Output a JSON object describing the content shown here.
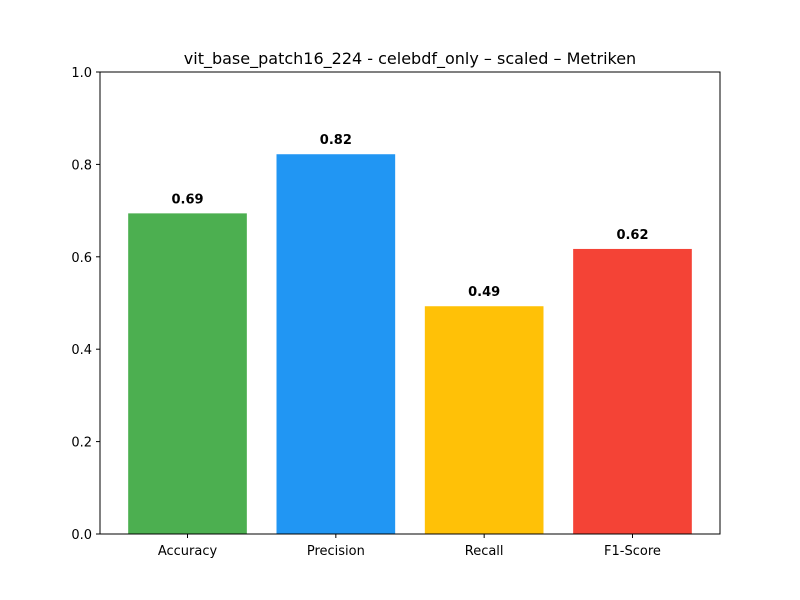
{
  "chart_data": {
    "type": "bar",
    "title": "vit_base_patch16_224 - celebdf_only – scaled – Metriken",
    "xlabel": "",
    "ylabel": "",
    "categories": [
      "Accuracy",
      "Precision",
      "Recall",
      "F1-Score"
    ],
    "values": [
      0.694,
      0.822,
      0.493,
      0.617
    ],
    "value_labels": [
      "0.69",
      "0.82",
      "0.49",
      "0.62"
    ],
    "colors": [
      "#4caf50",
      "#2196f3",
      "#ffc107",
      "#f44336"
    ],
    "ylim": [
      0,
      1.0
    ],
    "yticks": [
      "0.0",
      "0.2",
      "0.4",
      "0.6",
      "0.8",
      "1.0"
    ],
    "grid": false
  }
}
